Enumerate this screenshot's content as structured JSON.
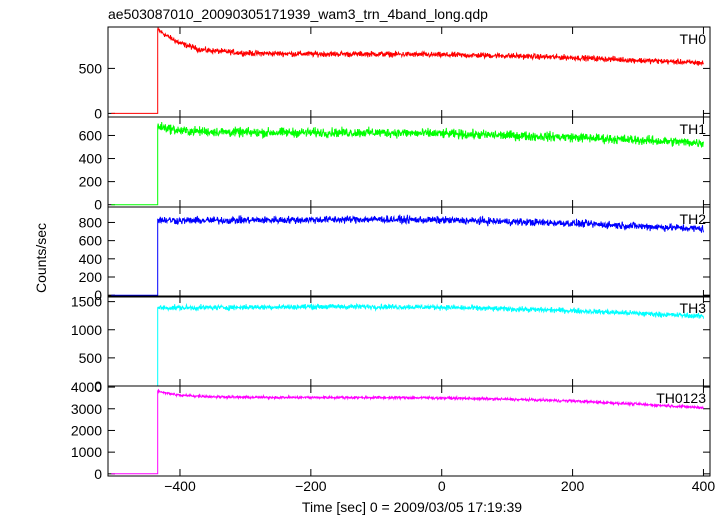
{
  "chart_data": {
    "type": "line",
    "title": "ae503087010_20090305171939_wam3_trn_4band_long.qdp",
    "xlabel": "Time [sec] 0 = 2009/03/05 17:19:39",
    "ylabel": "Counts/sec",
    "xlim": [
      -510,
      410
    ],
    "x_ticks": [
      -400,
      -200,
      0,
      200,
      400
    ],
    "x_tick_labels": [
      "−400",
      "−200",
      "0",
      "200",
      "400"
    ],
    "grid": false,
    "line_style": "histogram step, no legend",
    "x_range_data": [
      -505,
      400
    ],
    "trigger_time": -434,
    "panels": [
      {
        "name": "TH0",
        "color": "#ff0000",
        "ylim": [
          -40,
          960
        ],
        "y_ticks": [
          0,
          500
        ],
        "y_tick_labels": [
          "0",
          "500"
        ],
        "pre_trigger_level": 0,
        "series": [
          {
            "x": -434,
            "y": 930
          },
          {
            "x": -420,
            "y": 860
          },
          {
            "x": -400,
            "y": 780
          },
          {
            "x": -370,
            "y": 710
          },
          {
            "x": -340,
            "y": 690
          },
          {
            "x": -300,
            "y": 670
          },
          {
            "x": -200,
            "y": 660
          },
          {
            "x": -100,
            "y": 660
          },
          {
            "x": 0,
            "y": 650
          },
          {
            "x": 100,
            "y": 640
          },
          {
            "x": 200,
            "y": 620
          },
          {
            "x": 300,
            "y": 590
          },
          {
            "x": 400,
            "y": 560
          }
        ],
        "noise": 30
      },
      {
        "name": "TH1",
        "color": "#00ff00",
        "ylim": [
          -20,
          760
        ],
        "y_ticks": [
          0,
          200,
          400,
          600
        ],
        "y_tick_labels": [
          "0",
          "200",
          "400",
          "600"
        ],
        "pre_trigger_level": 0,
        "series": [
          {
            "x": -434,
            "y": 680
          },
          {
            "x": -400,
            "y": 640
          },
          {
            "x": -300,
            "y": 625
          },
          {
            "x": -200,
            "y": 625
          },
          {
            "x": -100,
            "y": 625
          },
          {
            "x": 0,
            "y": 615
          },
          {
            "x": 100,
            "y": 600
          },
          {
            "x": 200,
            "y": 585
          },
          {
            "x": 300,
            "y": 560
          },
          {
            "x": 400,
            "y": 535
          }
        ],
        "noise": 40
      },
      {
        "name": "TH2",
        "color": "#0000ff",
        "ylim": [
          -20,
          970
        ],
        "y_ticks": [
          0,
          200,
          400,
          600,
          800
        ],
        "y_tick_labels": [
          "0",
          "200",
          "400",
          "600",
          "800"
        ],
        "pre_trigger_level": 0,
        "series": [
          {
            "x": -434,
            "y": 830
          },
          {
            "x": -400,
            "y": 820
          },
          {
            "x": -300,
            "y": 825
          },
          {
            "x": -200,
            "y": 830
          },
          {
            "x": -100,
            "y": 835
          },
          {
            "x": 0,
            "y": 825
          },
          {
            "x": 100,
            "y": 810
          },
          {
            "x": 200,
            "y": 790
          },
          {
            "x": 300,
            "y": 760
          },
          {
            "x": 400,
            "y": 730
          }
        ],
        "noise": 40
      },
      {
        "name": "TH3",
        "color": "#00ffff",
        "ylim": [
          0,
          1600
        ],
        "y_ticks": [
          0,
          500,
          1000,
          1500
        ],
        "y_tick_labels": [
          "0",
          "500",
          "1000",
          "1500"
        ],
        "pre_trigger_level": 0,
        "series": [
          {
            "x": -434,
            "y": 1390
          },
          {
            "x": -400,
            "y": 1390
          },
          {
            "x": -300,
            "y": 1400
          },
          {
            "x": -200,
            "y": 1410
          },
          {
            "x": -100,
            "y": 1410
          },
          {
            "x": 0,
            "y": 1400
          },
          {
            "x": 100,
            "y": 1370
          },
          {
            "x": 200,
            "y": 1340
          },
          {
            "x": 300,
            "y": 1290
          },
          {
            "x": 400,
            "y": 1240
          }
        ],
        "noise": 45
      },
      {
        "name": "TH0123",
        "color": "#ff00ff",
        "ylim": [
          -100,
          4050
        ],
        "y_ticks": [
          0,
          1000,
          2000,
          3000,
          4000
        ],
        "y_tick_labels": [
          "0",
          "1000",
          "2000",
          "3000",
          "4000"
        ],
        "pre_trigger_level": 0,
        "series": [
          {
            "x": -434,
            "y": 3830
          },
          {
            "x": -420,
            "y": 3720
          },
          {
            "x": -400,
            "y": 3620
          },
          {
            "x": -350,
            "y": 3560
          },
          {
            "x": -300,
            "y": 3530
          },
          {
            "x": -200,
            "y": 3520
          },
          {
            "x": -100,
            "y": 3520
          },
          {
            "x": 0,
            "y": 3500
          },
          {
            "x": 100,
            "y": 3440
          },
          {
            "x": 200,
            "y": 3360
          },
          {
            "x": 300,
            "y": 3210
          },
          {
            "x": 400,
            "y": 3050
          }
        ],
        "noise": 60
      }
    ]
  }
}
